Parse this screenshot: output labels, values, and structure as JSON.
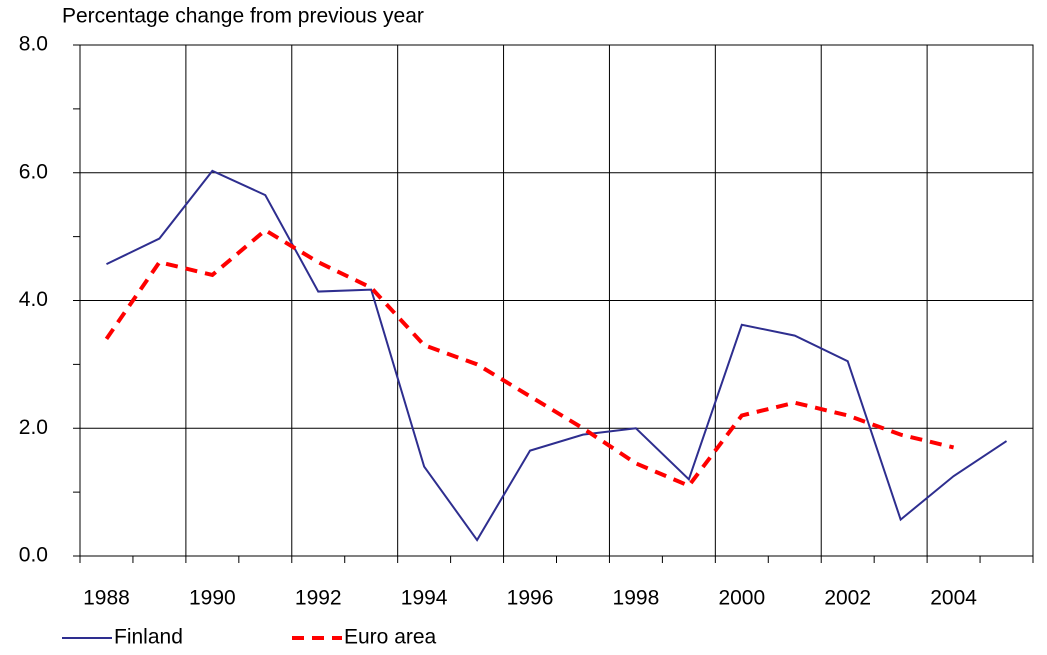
{
  "chart_data": {
    "type": "line",
    "y_label": "Percentage change from previous year",
    "categories": [
      "1988",
      null,
      "1990",
      null,
      "1992",
      null,
      "1994",
      null,
      "1996",
      null,
      "1998",
      null,
      "2000",
      null,
      "2002",
      null,
      "2004",
      null
    ],
    "series": [
      {
        "name": "Finland",
        "color": "#2e2e8f",
        "dash": "solid",
        "values": [
          4.57,
          4.97,
          6.03,
          5.65,
          4.14,
          4.17,
          1.4,
          0.25,
          1.65,
          1.9,
          2.0,
          1.2,
          3.62,
          3.45,
          3.05,
          0.57,
          1.25,
          1.8
        ]
      },
      {
        "name": "Euro area",
        "color": "#ff0000",
        "dash": "dashed",
        "values": [
          3.4,
          4.6,
          4.4,
          5.1,
          4.6,
          4.2,
          3.3,
          3.0,
          2.5,
          2.0,
          1.45,
          1.1,
          2.2,
          2.4,
          2.2,
          1.9,
          1.7,
          null
        ]
      }
    ],
    "ylim": [
      0,
      8
    ],
    "yticks": [
      {
        "value": 0,
        "label": "0.0"
      },
      {
        "value": 2,
        "label": "2.0"
      },
      {
        "value": 4,
        "label": "4.0"
      },
      {
        "value": 6,
        "label": "6.0"
      },
      {
        "value": 8,
        "label": "8.0"
      }
    ],
    "grid": true
  }
}
